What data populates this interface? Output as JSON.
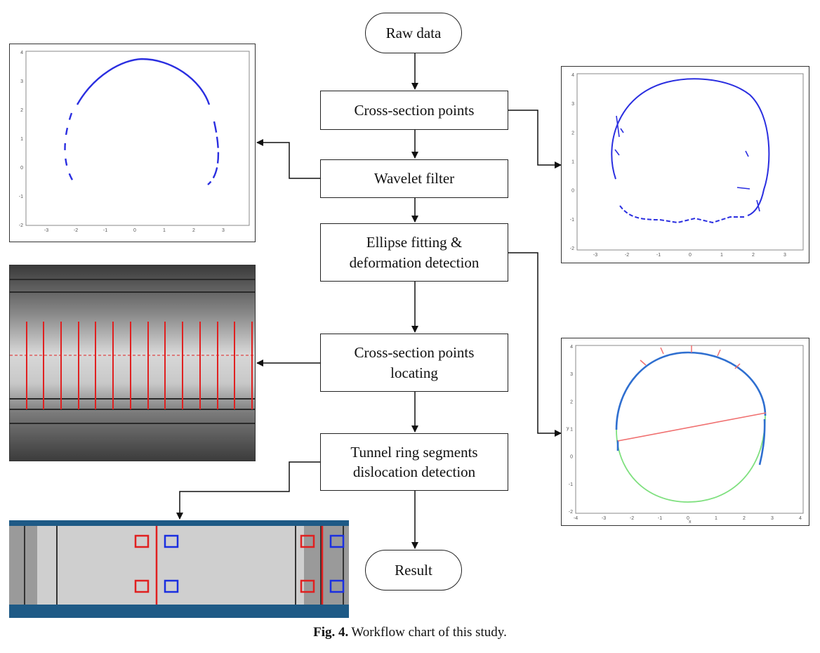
{
  "flow": {
    "raw_data": "Raw data",
    "cross_section_points": "Cross-section points",
    "wavelet_filter": "Wavelet filter",
    "ellipse_fitting": [
      "Ellipse fitting &",
      "deformation detection"
    ],
    "cross_section_locating": [
      "Cross-section points",
      "locating"
    ],
    "tunnel_ring": [
      "Tunnel ring segments",
      "dislocation detection"
    ],
    "result": "Result"
  },
  "plots": {
    "filtered": {
      "x_ticks": [
        "-3",
        "-2",
        "-1",
        "0",
        "1",
        "2",
        "3"
      ],
      "y_ticks": [
        "4",
        "3",
        "2",
        "1",
        "0",
        "-1",
        "-2"
      ]
    },
    "raw_section": {
      "x_ticks": [
        "-3",
        "-2",
        "-1",
        "0",
        "1",
        "2",
        "3"
      ],
      "y_ticks": [
        "4",
        "3",
        "2",
        "1",
        "0",
        "-1",
        "-2"
      ]
    },
    "ellipse_fit": {
      "x_ticks": [
        "-4",
        "-3",
        "-2",
        "-1",
        "0",
        "1",
        "2",
        "3",
        "4"
      ],
      "y_ticks": [
        "4",
        "3",
        "2",
        "1",
        "0",
        "-1",
        "-2"
      ],
      "xlabel": "x",
      "ylabel": "y"
    }
  },
  "colors": {
    "point_cloud": "#2a2ee0",
    "fitted_arc": "#2f6fd0",
    "lower_arc": "#7fe07f",
    "diameter": "#f07070",
    "marker_red": "#e02020",
    "marker_blue": "#1a2fe0",
    "scan_band": "#1e5a86"
  },
  "caption": {
    "label": "Fig. 4.",
    "text": "Workflow chart of this study."
  }
}
